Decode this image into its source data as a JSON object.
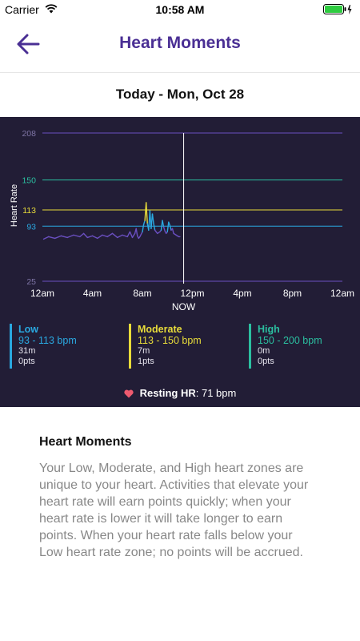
{
  "status_bar": {
    "carrier": "Carrier",
    "time": "10:58 AM"
  },
  "header": {
    "title": "Heart Moments",
    "back_icon": "arrow-left-icon"
  },
  "date_label": "Today - Mon, Oct 28",
  "chart_data": {
    "type": "line",
    "ylabel": "Heart Rate",
    "ylim": [
      25,
      208
    ],
    "xlim": [
      0,
      24
    ],
    "yticks": [
      208,
      150,
      113,
      93,
      25
    ],
    "zone_lines": [
      {
        "value": 208,
        "color": "#6a4fc0"
      },
      {
        "value": 150,
        "color": "#2bbfa0"
      },
      {
        "value": 113,
        "color": "#e8dc3a"
      },
      {
        "value": 93,
        "color": "#2aa8e0"
      },
      {
        "value": 25,
        "color": "#6a4fc0"
      }
    ],
    "xticks": [
      {
        "x": 0,
        "label": "12am"
      },
      {
        "x": 4,
        "label": "4am"
      },
      {
        "x": 8,
        "label": "8am"
      },
      {
        "x": 12,
        "label": "12pm"
      },
      {
        "x": 16,
        "label": "4pm"
      },
      {
        "x": 20,
        "label": "8pm"
      },
      {
        "x": 24,
        "label": "12am"
      }
    ],
    "now_x": 11.3,
    "now_label": "NOW",
    "series": [
      {
        "x": [
          0.1,
          0.5,
          1.0,
          1.5,
          2.0,
          2.5,
          3.0,
          3.3,
          3.6,
          4.0,
          4.4,
          4.8,
          5.2,
          5.6,
          6.0,
          6.4,
          6.8,
          7.0,
          7.2,
          7.4,
          7.5,
          7.6,
          7.7,
          7.8,
          7.9,
          8.0,
          8.1,
          8.2,
          8.3,
          8.4,
          8.5,
          8.6,
          8.7,
          8.8,
          8.9,
          9.0,
          9.1,
          9.2,
          9.3,
          9.4,
          9.5,
          9.6,
          9.7,
          9.8,
          9.9,
          10.0,
          10.1,
          10.2,
          10.3,
          10.4,
          10.5,
          10.7,
          10.9,
          11.0
        ],
        "y": [
          77,
          80,
          78,
          81,
          79,
          82,
          80,
          84,
          79,
          81,
          78,
          82,
          80,
          84,
          79,
          82,
          80,
          86,
          79,
          84,
          90,
          81,
          78,
          80,
          83,
          86,
          95,
          100,
          122,
          96,
          88,
          112,
          90,
          108,
          96,
          88,
          86,
          84,
          85,
          86,
          88,
          100,
          92,
          87,
          84,
          86,
          98,
          94,
          88,
          90,
          84,
          82,
          80,
          80
        ]
      }
    ]
  },
  "legend": [
    {
      "name": "Low",
      "range": "93 - 113 bpm",
      "minutes": "31m",
      "points": "0pts",
      "color": "#2aa8e0"
    },
    {
      "name": "Moderate",
      "range": "113 - 150 bpm",
      "minutes": "7m",
      "points": "1pts",
      "color": "#e8dc3a"
    },
    {
      "name": "High",
      "range": "150 - 200 bpm",
      "minutes": "0m",
      "points": "0pts",
      "color": "#2bbfa0"
    }
  ],
  "resting": {
    "label": "Resting HR",
    "value": ": 71 bpm",
    "icon": "heart-icon"
  },
  "info": {
    "title": "Heart Moments",
    "body": "Your Low, Moderate, and High heart zones are unique to your heart. Activities that elevate your heart rate will earn points quickly; when your heart rate is lower it will take longer to earn points. When your heart rate falls below your Low heart rate zone; no points will be accrued."
  },
  "colors": {
    "accent": "#4a2f94",
    "panel": "#221d36",
    "line": "#6a4fc0"
  }
}
